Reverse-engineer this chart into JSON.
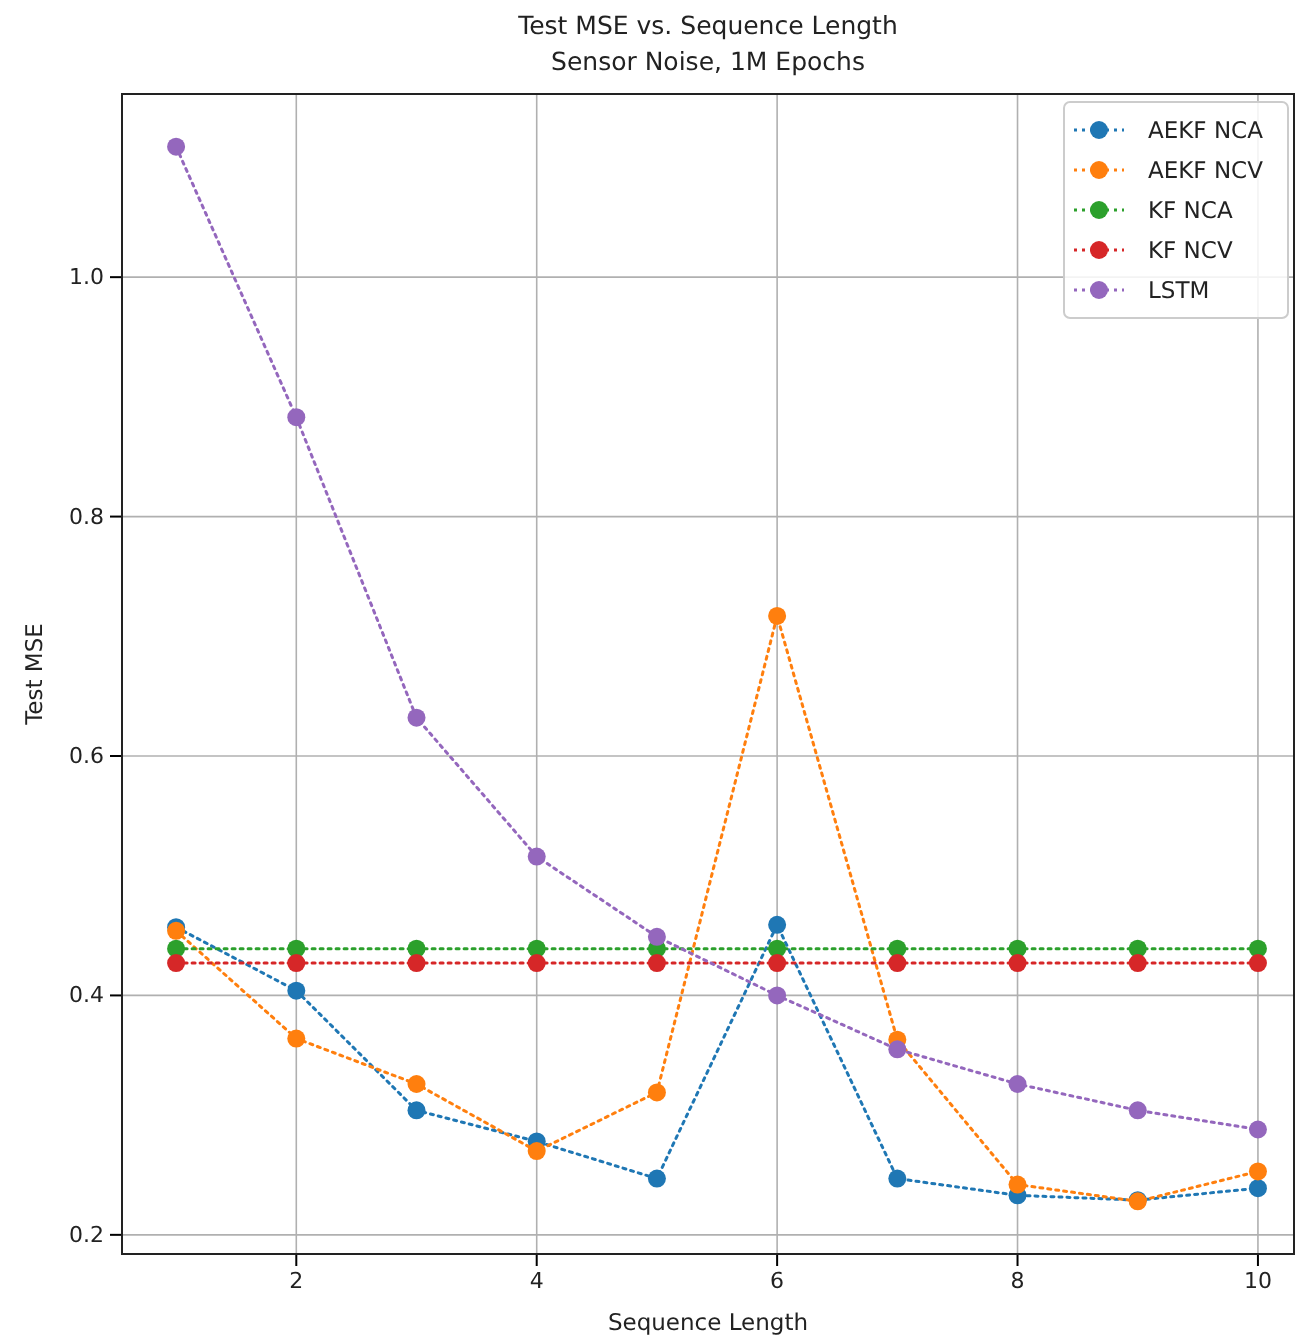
{
  "chart_data": {
    "type": "line",
    "title": "Test MSE vs. Sequence Length",
    "subtitle": "Sensor Noise, 1M Epochs",
    "xlabel": "Sequence Length",
    "ylabel": "Test MSE",
    "x": [
      1,
      2,
      3,
      4,
      5,
      6,
      7,
      8,
      9,
      10
    ],
    "series": [
      {
        "name": "AEKF NCA",
        "color": "#1f77b4",
        "values": [
          0.457,
          0.404,
          0.304,
          0.278,
          0.247,
          0.459,
          0.247,
          0.233,
          0.229,
          0.239
        ]
      },
      {
        "name": "AEKF NCV",
        "color": "#ff7f0e",
        "values": [
          0.454,
          0.364,
          0.326,
          0.27,
          0.319,
          0.717,
          0.363,
          0.242,
          0.228,
          0.253
        ]
      },
      {
        "name": "KF NCA",
        "color": "#2ca02c",
        "values": [
          0.439,
          0.439,
          0.439,
          0.439,
          0.439,
          0.439,
          0.439,
          0.439,
          0.439,
          0.439
        ]
      },
      {
        "name": "KF NCV",
        "color": "#d62728",
        "values": [
          0.427,
          0.427,
          0.427,
          0.427,
          0.427,
          0.427,
          0.427,
          0.427,
          0.427,
          0.427
        ]
      },
      {
        "name": "LSTM",
        "color": "#9467bd",
        "values": [
          1.109,
          0.883,
          0.632,
          0.516,
          0.449,
          0.4,
          0.355,
          0.326,
          0.304,
          0.288
        ]
      }
    ],
    "xlim": [
      0.55,
      10.3
    ],
    "ylim": [
      0.184,
      1.153
    ],
    "xticks": [
      2,
      4,
      6,
      8,
      10
    ],
    "yticks": [
      {
        "value": 0.2,
        "label": "0.2"
      },
      {
        "value": 0.4,
        "label": "0.4"
      },
      {
        "value": 0.6,
        "label": "0.6"
      },
      {
        "value": 0.8,
        "label": "0.8"
      },
      {
        "value": 1.0,
        "label": "1.0"
      }
    ],
    "grid": true,
    "legend": "top right",
    "marker": "circle",
    "line_style": "dotted"
  }
}
